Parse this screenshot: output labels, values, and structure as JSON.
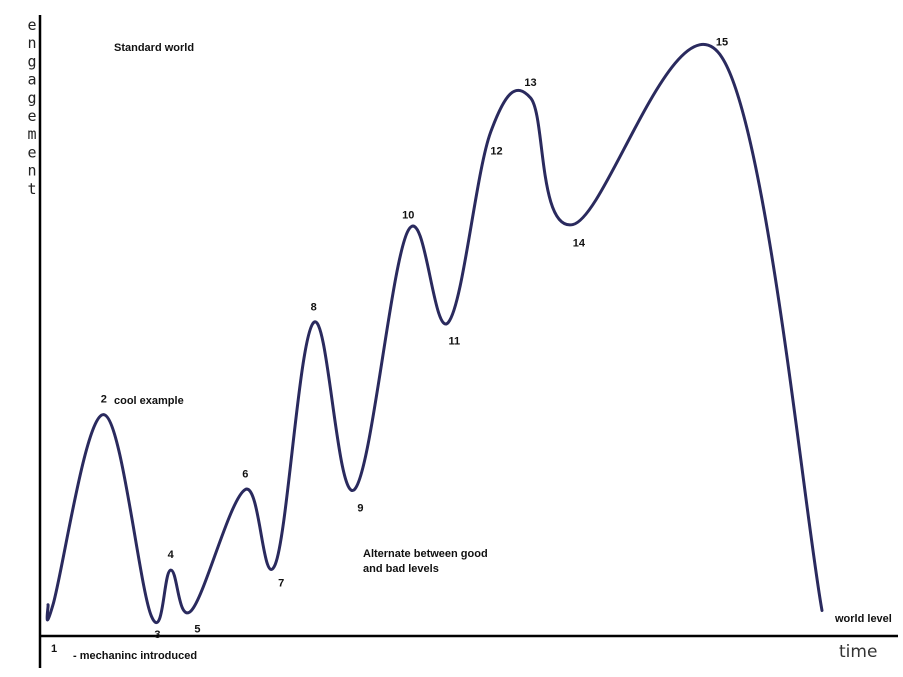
{
  "chart_data": {
    "type": "line",
    "title": "Standard world",
    "ylabel": "engagement",
    "xlabel": "time",
    "grid": false,
    "legend": "none",
    "line_color": "#2a2a5e",
    "points": [
      {
        "label": "1",
        "x": 0.0,
        "y": 0.03
      },
      {
        "label": "2",
        "x": 0.066,
        "y": 0.36
      },
      {
        "label": "3",
        "x": 0.128,
        "y": 0.01
      },
      {
        "label": "4",
        "x": 0.153,
        "y": 0.09
      },
      {
        "label": "5",
        "x": 0.18,
        "y": 0.02
      },
      {
        "label": "6",
        "x": 0.25,
        "y": 0.23
      },
      {
        "label": "7",
        "x": 0.289,
        "y": 0.1
      },
      {
        "label": "8",
        "x": 0.339,
        "y": 0.52
      },
      {
        "label": "9",
        "x": 0.392,
        "y": 0.23
      },
      {
        "label": "10",
        "x": 0.462,
        "y": 0.68
      },
      {
        "label": "11",
        "x": 0.514,
        "y": 0.52
      },
      {
        "label": "12",
        "x": 0.569,
        "y": 0.85
      },
      {
        "label": "13",
        "x": 0.621,
        "y": 0.91
      },
      {
        "label": "14",
        "x": 0.676,
        "y": 0.69
      },
      {
        "label": "15",
        "x": 0.87,
        "y": 0.98
      },
      {
        "label": "",
        "x": 1.0,
        "y": 0.02
      }
    ],
    "annotations": {
      "cool_example": "cool example",
      "alternate": [
        "Alternate between good",
        "and bad levels"
      ],
      "world_level": "world level",
      "mechanic": "- mechaninc introduced"
    }
  }
}
